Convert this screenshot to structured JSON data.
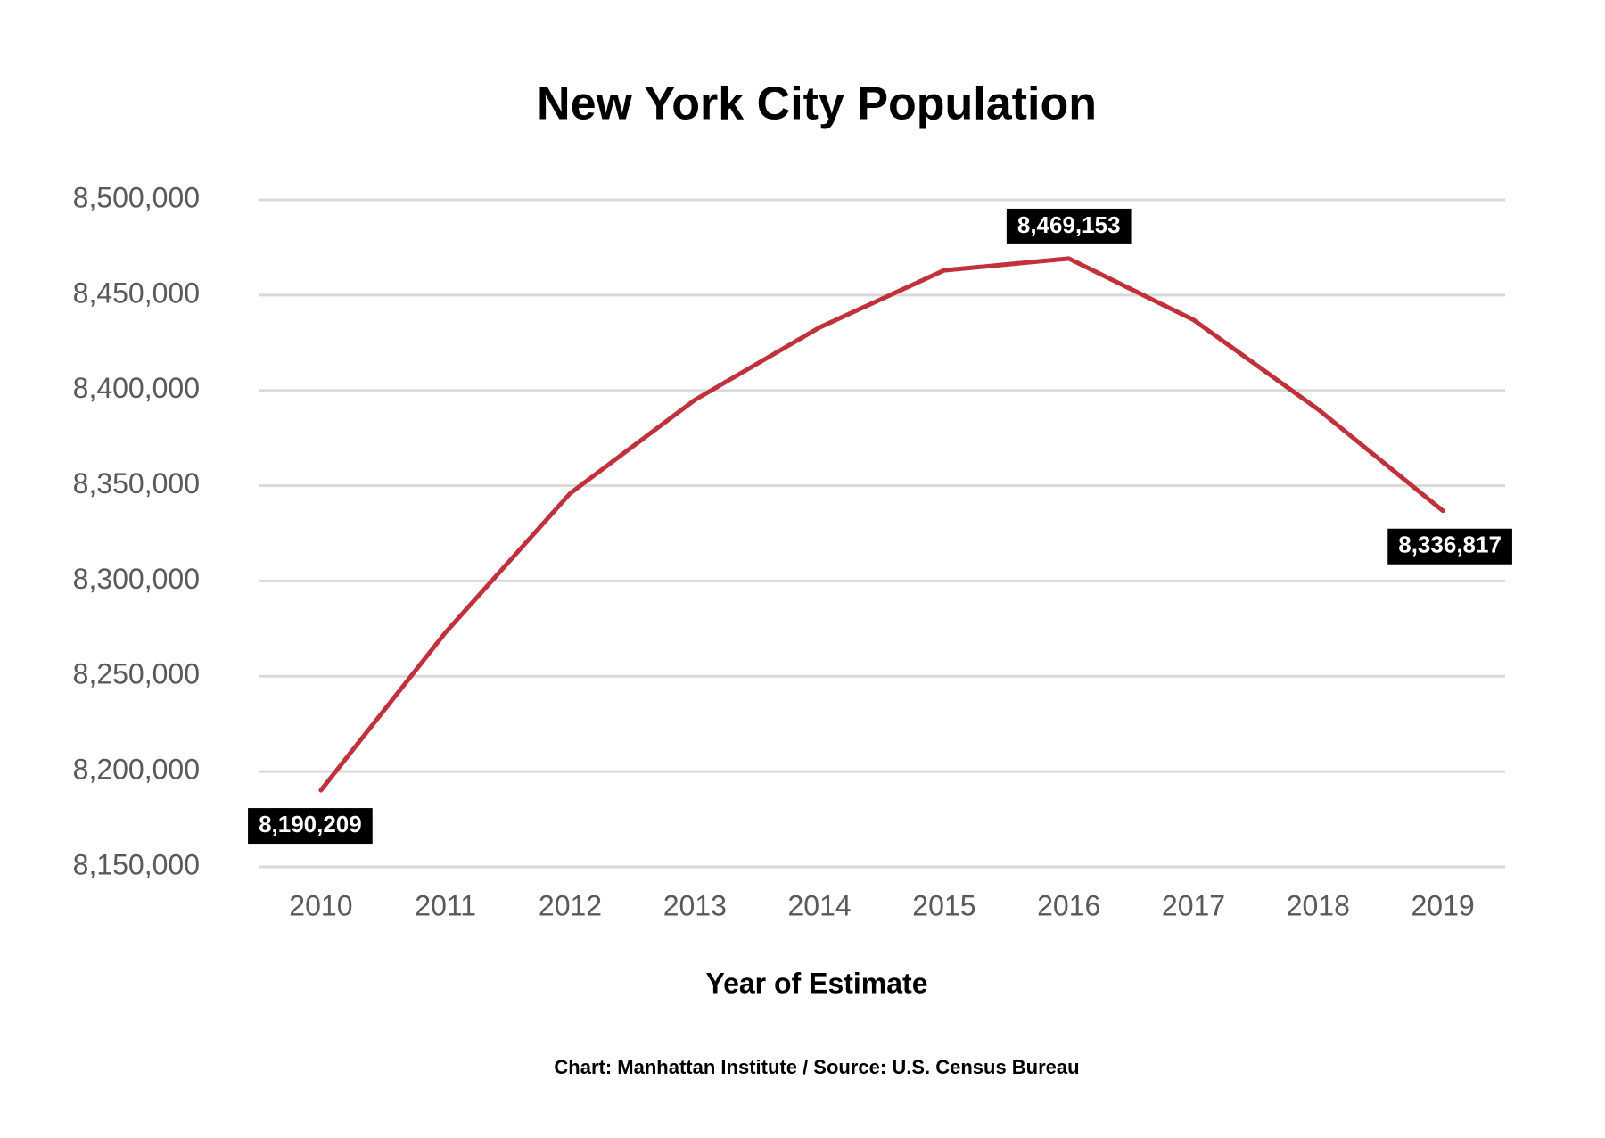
{
  "chart_data": {
    "type": "line",
    "title": "New York City Population",
    "x_label": "Year of Estimate",
    "source": "Chart: Manhattan Institute / Source: U.S. Census Bureau",
    "categories": [
      "2010",
      "2011",
      "2012",
      "2013",
      "2014",
      "2015",
      "2016",
      "2017",
      "2018",
      "2019"
    ],
    "series": [
      {
        "name": "Population",
        "color": "#c1313c",
        "values": [
          8190209,
          8273000,
          8346000,
          8395000,
          8433000,
          8463000,
          8469153,
          8437000,
          8390000,
          8336817
        ],
        "value_labels": [
          "8,190,209",
          null,
          null,
          null,
          null,
          null,
          "8,469,153",
          null,
          null,
          "8,336,817"
        ]
      }
    ],
    "ylim": [
      8150000,
      8500000
    ],
    "yticks": [
      {
        "value": 8150000,
        "label": "8,150,000"
      },
      {
        "value": 8200000,
        "label": "8,200,000"
      },
      {
        "value": 8250000,
        "label": "8,250,000"
      },
      {
        "value": 8300000,
        "label": "8,300,000"
      },
      {
        "value": 8350000,
        "label": "8,350,000"
      },
      {
        "value": 8400000,
        "label": "8,400,000"
      },
      {
        "value": 8450000,
        "label": "8,450,000"
      },
      {
        "value": 8500000,
        "label": "8,500,000"
      }
    ],
    "grid": true
  }
}
